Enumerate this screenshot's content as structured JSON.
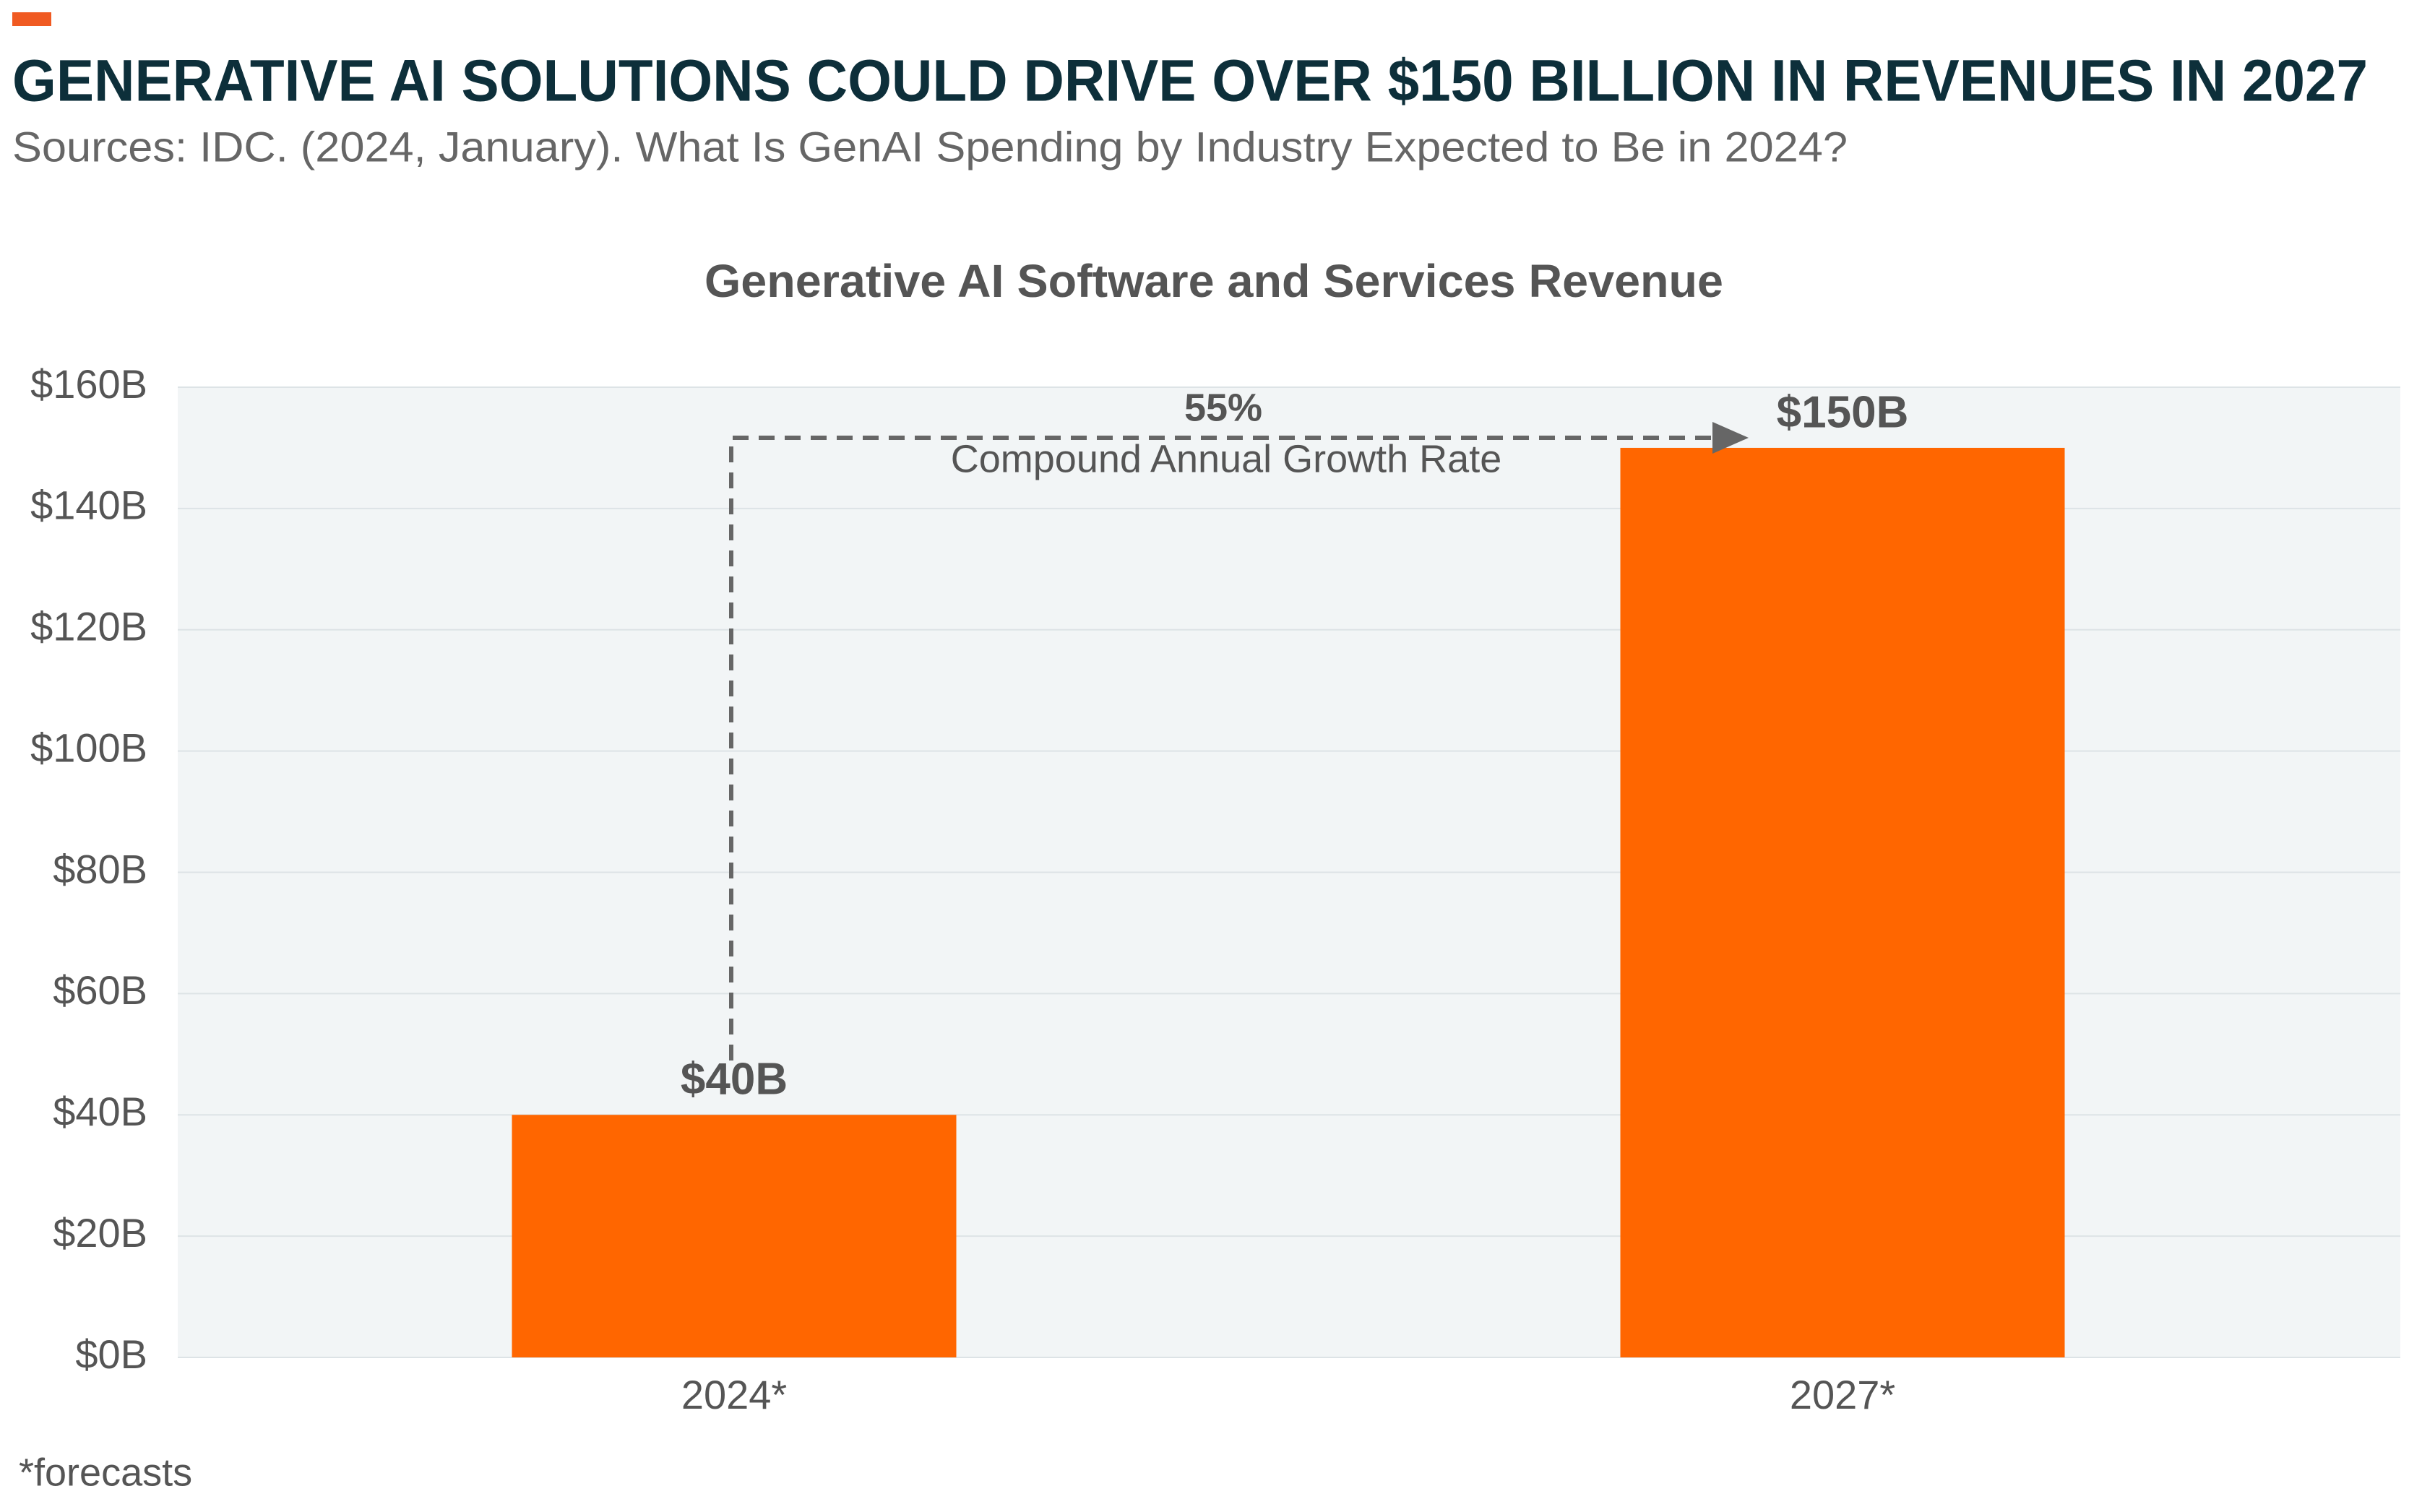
{
  "chart_data": {
    "type": "bar",
    "title": "GENERATIVE AI SOLUTIONS COULD DRIVE OVER $150 BILLION IN REVENUES IN 2027",
    "subtitle": "Sources: IDC. (2024, January). What Is GenAI Spending by Industry Expected to Be in 2024?",
    "chart_title": "Generative AI Software and Services Revenue",
    "categories": [
      "2024*",
      "2027*"
    ],
    "values": [
      40,
      150
    ],
    "value_labels": [
      "$40B",
      "$150B"
    ],
    "color": "#ff6600",
    "ylim": [
      0,
      160
    ],
    "yticks": [
      {
        "value": 0,
        "label": "$0B"
      },
      {
        "value": 20,
        "label": "$20B"
      },
      {
        "value": 40,
        "label": "$40B"
      },
      {
        "value": 60,
        "label": "$60B"
      },
      {
        "value": 80,
        "label": "$80B"
      },
      {
        "value": 100,
        "label": "$100B"
      },
      {
        "value": 120,
        "label": "$120B"
      },
      {
        "value": 140,
        "label": "$140B"
      },
      {
        "value": 160,
        "label": "$160B"
      }
    ],
    "grid": true,
    "annotations": [
      "55%",
      "Compound Annual Growth Rate"
    ],
    "footnote": "*forecasts"
  }
}
